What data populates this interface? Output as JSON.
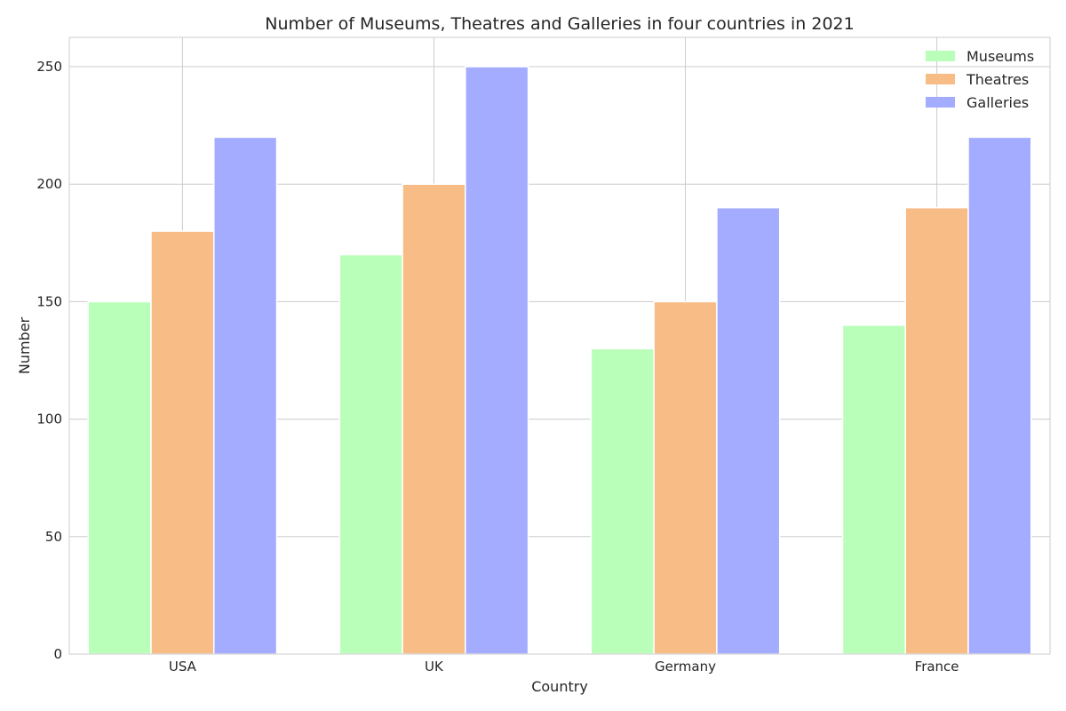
{
  "chart_data": {
    "type": "bar",
    "title": "Number of Museums, Theatres and Galleries in four countries in 2021",
    "xlabel": "Country",
    "ylabel": "Number",
    "categories": [
      "USA",
      "UK",
      "Germany",
      "France"
    ],
    "series": [
      {
        "name": "Museums",
        "values": [
          150,
          170,
          130,
          140
        ],
        "color": "#b9ffb9"
      },
      {
        "name": "Theatres",
        "values": [
          180,
          200,
          150,
          190
        ],
        "color": "#f8bc87"
      },
      {
        "name": "Galleries",
        "values": [
          220,
          250,
          190,
          220
        ],
        "color": "#a4acff"
      }
    ],
    "ylim": [
      0,
      262.5
    ],
    "yticks": [
      0,
      50,
      100,
      150,
      200,
      250
    ],
    "grid": true,
    "legend_position": "top-right"
  }
}
